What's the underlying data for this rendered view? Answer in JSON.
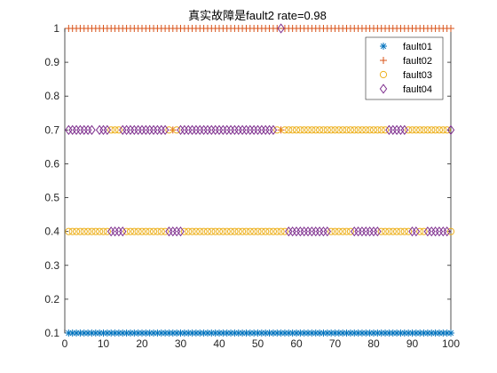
{
  "chart_data": {
    "type": "scatter",
    "title": "真实故障是fault2   rate=0.98",
    "xlabel": "",
    "ylabel": "",
    "xlim": [
      0,
      100
    ],
    "ylim": [
      0.1,
      1.0
    ],
    "x_ticks": [
      "0",
      "10",
      "20",
      "30",
      "40",
      "50",
      "60",
      "70",
      "80",
      "90",
      "100"
    ],
    "y_ticks": [
      "0.1",
      "0.2",
      "0.3",
      "0.4",
      "0.5",
      "0.6",
      "0.7",
      "0.8",
      "0.9",
      "1"
    ],
    "grid": false,
    "legend_position": "top-right",
    "x": "1..100 (every sample)",
    "series": [
      {
        "name": "fault01",
        "marker": "asterisk",
        "color": "#0072BD",
        "y_value": 0.1,
        "x_values": [
          1,
          2,
          3,
          4,
          5,
          6,
          7,
          8,
          9,
          10,
          11,
          12,
          13,
          14,
          15,
          16,
          17,
          18,
          19,
          20,
          21,
          22,
          23,
          24,
          25,
          26,
          27,
          28,
          29,
          30,
          31,
          32,
          33,
          34,
          35,
          36,
          37,
          38,
          39,
          40,
          41,
          42,
          43,
          44,
          45,
          46,
          47,
          48,
          49,
          50,
          51,
          52,
          53,
          54,
          55,
          56,
          57,
          58,
          59,
          60,
          61,
          62,
          63,
          64,
          65,
          66,
          67,
          68,
          69,
          70,
          71,
          72,
          73,
          74,
          75,
          76,
          77,
          78,
          79,
          80,
          81,
          82,
          83,
          84,
          85,
          86,
          87,
          88,
          89,
          90,
          91,
          92,
          93,
          94,
          95,
          96,
          97,
          98,
          99,
          100
        ]
      },
      {
        "name": "fault02",
        "marker": "plus",
        "color": "#D95319",
        "points": [
          {
            "y": 1.0,
            "x_values": [
              1,
              2,
              3,
              4,
              5,
              6,
              7,
              8,
              9,
              10,
              11,
              12,
              13,
              14,
              15,
              16,
              17,
              18,
              19,
              20,
              21,
              22,
              23,
              24,
              25,
              26,
              27,
              28,
              29,
              30,
              31,
              32,
              33,
              34,
              35,
              36,
              37,
              38,
              39,
              40,
              41,
              42,
              43,
              44,
              45,
              46,
              47,
              48,
              49,
              50,
              51,
              52,
              53,
              54,
              55,
              57,
              58,
              59,
              60,
              61,
              62,
              63,
              64,
              65,
              66,
              67,
              68,
              69,
              70,
              71,
              72,
              73,
              74,
              75,
              76,
              77,
              78,
              79,
              80,
              81,
              82,
              83,
              84,
              85,
              86,
              87,
              88,
              89,
              90,
              91,
              92,
              93,
              94,
              95,
              96,
              97,
              98,
              99,
              100
            ]
          },
          {
            "y": 0.7,
            "x_values": [
              28,
              56
            ]
          }
        ]
      },
      {
        "name": "fault03",
        "marker": "circle",
        "color": "#EDB120",
        "points": [
          {
            "y": 0.4,
            "x_values": [
              1,
              2,
              3,
              4,
              5,
              6,
              7,
              8,
              9,
              10,
              11,
              16,
              17,
              18,
              19,
              20,
              21,
              22,
              23,
              24,
              25,
              26,
              31,
              32,
              33,
              34,
              35,
              36,
              37,
              38,
              39,
              40,
              41,
              42,
              43,
              44,
              45,
              46,
              47,
              48,
              49,
              50,
              51,
              52,
              53,
              54,
              55,
              56,
              57,
              69,
              70,
              71,
              72,
              73,
              74,
              82,
              83,
              84,
              85,
              86,
              87,
              88,
              89,
              92,
              93,
              100
            ]
          },
          {
            "y": 0.7,
            "x_values": [
              12,
              13,
              14,
              27,
              29,
              55,
              57,
              58,
              59,
              60,
              61,
              62,
              63,
              64,
              65,
              66,
              67,
              68,
              69,
              70,
              71,
              72,
              73,
              74,
              75,
              76,
              77,
              78,
              79,
              80,
              81,
              82,
              83,
              89,
              90,
              91,
              92,
              93,
              94,
              95,
              96,
              97,
              98,
              99
            ]
          }
        ]
      },
      {
        "name": "fault04",
        "marker": "diamond",
        "color": "#7E2F8E",
        "points": [
          {
            "y": 0.7,
            "x_values": [
              1,
              2,
              3,
              4,
              5,
              6,
              7,
              9,
              10,
              11,
              15,
              16,
              17,
              18,
              19,
              20,
              21,
              22,
              23,
              24,
              25,
              26,
              30,
              31,
              32,
              33,
              34,
              35,
              36,
              37,
              38,
              39,
              40,
              41,
              42,
              43,
              44,
              45,
              46,
              47,
              48,
              49,
              50,
              51,
              52,
              53,
              54,
              84,
              85,
              86,
              87,
              88,
              100
            ]
          },
          {
            "y": 0.4,
            "x_values": [
              12,
              13,
              14,
              15,
              27,
              28,
              29,
              30,
              58,
              59,
              60,
              61,
              62,
              63,
              64,
              65,
              66,
              67,
              68,
              75,
              76,
              77,
              78,
              79,
              80,
              81,
              90,
              91,
              94,
              95,
              96,
              97,
              98,
              99
            ]
          },
          {
            "y": 1.0,
            "x_values": [
              56
            ]
          }
        ]
      }
    ]
  }
}
